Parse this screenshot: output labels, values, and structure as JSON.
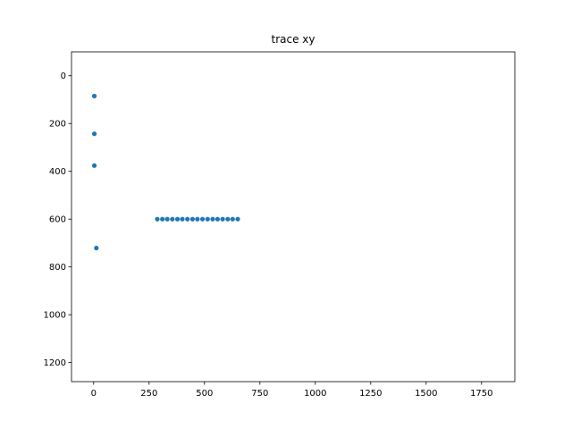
{
  "chart_data": {
    "type": "scatter",
    "title": "trace xy",
    "xlabel": "",
    "ylabel": "",
    "xlim": [
      -100,
      1900
    ],
    "ylim": [
      1280,
      -100
    ],
    "y_inverted": true,
    "grid": false,
    "marker_color": "#1f77b4",
    "x_ticks": [
      0,
      250,
      500,
      750,
      1000,
      1250,
      1500,
      1750
    ],
    "y_ticks": [
      0,
      200,
      400,
      600,
      800,
      1000,
      1200
    ],
    "series": [
      {
        "x": [
          3,
          3,
          3,
          12,
          287,
          310,
          332,
          355,
          378,
          400,
          423,
          446,
          468,
          491,
          514,
          537,
          559,
          582,
          605,
          627,
          650
        ],
        "y": [
          85,
          243,
          376,
          721,
          600,
          600,
          600,
          600,
          600,
          600,
          600,
          600,
          600,
          600,
          600,
          600,
          600,
          600,
          600,
          600,
          600
        ]
      }
    ]
  }
}
